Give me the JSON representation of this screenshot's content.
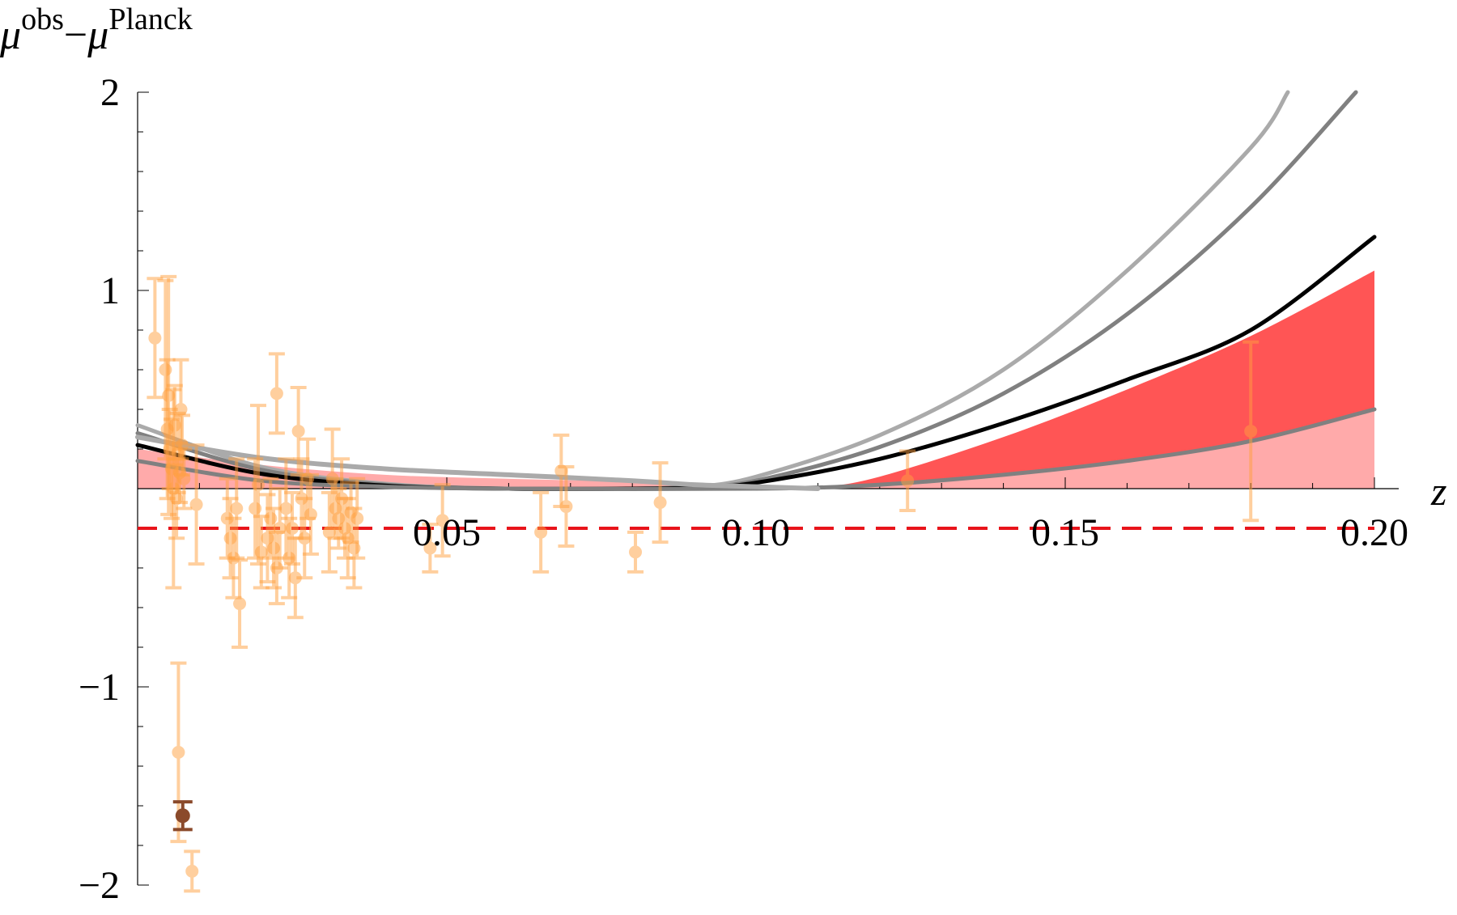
{
  "chart_data": {
    "type": "scatter",
    "title": "",
    "xlabel": "z",
    "ylabel": {
      "base1": "μ",
      "sup1": "obs",
      "minus": "−",
      "base2": "μ",
      "sup2": "Planck"
    },
    "xlim": [
      0,
      0.2
    ],
    "ylim": [
      -2,
      2
    ],
    "x_ticks": [
      {
        "value": 0.05,
        "label": "0.05"
      },
      {
        "value": 0.1,
        "label": "0.10"
      },
      {
        "value": 0.15,
        "label": "0.15"
      },
      {
        "value": 0.2,
        "label": "0.20"
      }
    ],
    "y_ticks": [
      {
        "value": 2,
        "label": "2"
      },
      {
        "value": 1,
        "label": "1"
      },
      {
        "value": -1,
        "label": "−1"
      },
      {
        "value": -2,
        "label": "−2"
      }
    ],
    "grid": false,
    "legend": "none",
    "colors": {
      "data_points": "#ffa040",
      "highlighted_point": "#8b4a2b",
      "band_dark": "#ff5555",
      "band_light": "#ffaaaa",
      "reference_line": "#e8141b",
      "curve_black": "#000000",
      "curve_dark_gray": "#808080",
      "curve_light_gray": "#aaaaaa"
    },
    "reference_line_y": -0.2,
    "curves": [
      {
        "color": "light-gray",
        "points": [
          [
            0,
            0.32
          ],
          [
            0.02,
            0.11
          ],
          [
            0.04,
            0.025
          ],
          [
            0.06,
            0
          ],
          [
            0.08,
            0
          ],
          [
            0.09,
            0.01
          ],
          [
            0.1,
            0.06
          ],
          [
            0.12,
            0.27
          ],
          [
            0.14,
            0.6
          ],
          [
            0.16,
            1.1
          ],
          [
            0.18,
            1.72
          ],
          [
            0.186,
            2.0
          ]
        ]
      },
      {
        "color": "dark-gray",
        "points": [
          [
            0,
            0.28
          ],
          [
            0.02,
            0.095
          ],
          [
            0.04,
            0.02
          ],
          [
            0.06,
            0
          ],
          [
            0.08,
            0
          ],
          [
            0.09,
            0.01
          ],
          [
            0.1,
            0.04
          ],
          [
            0.12,
            0.21
          ],
          [
            0.14,
            0.48
          ],
          [
            0.16,
            0.88
          ],
          [
            0.18,
            1.42
          ],
          [
            0.197,
            2.0
          ]
        ]
      },
      {
        "color": "black",
        "points": [
          [
            0,
            0.22
          ],
          [
            0.02,
            0.075
          ],
          [
            0.04,
            0.015
          ],
          [
            0.06,
            0
          ],
          [
            0.08,
            0
          ],
          [
            0.09,
            0.005
          ],
          [
            0.1,
            0.03
          ],
          [
            0.12,
            0.15
          ],
          [
            0.14,
            0.33
          ],
          [
            0.16,
            0.55
          ],
          [
            0.18,
            0.8
          ],
          [
            0.2,
            1.27
          ]
        ]
      },
      {
        "color": "band-lower-gray",
        "points": [
          [
            0,
            0.14
          ],
          [
            0.02,
            0.04
          ],
          [
            0.04,
            0.01
          ],
          [
            0.06,
            0
          ],
          [
            0.1,
            0
          ],
          [
            0.12,
            0.02
          ],
          [
            0.14,
            0.07
          ],
          [
            0.16,
            0.14
          ],
          [
            0.18,
            0.24
          ],
          [
            0.2,
            0.4
          ]
        ]
      },
      {
        "color": "upper-gray",
        "points": [
          [
            0,
            0.26
          ],
          [
            0.02,
            0.155
          ],
          [
            0.04,
            0.1
          ],
          [
            0.06,
            0.07
          ],
          [
            0.08,
            0.04
          ],
          [
            0.09,
            0.02
          ],
          [
            0.1,
            0.01
          ],
          [
            0.11,
            0
          ]
        ]
      }
    ],
    "band_dark": {
      "lower": [
        [
          0.11,
          0
        ],
        [
          0.12,
          0.02
        ],
        [
          0.14,
          0.07
        ],
        [
          0.16,
          0.14
        ],
        [
          0.18,
          0.24
        ],
        [
          0.2,
          0.4
        ]
      ],
      "upper": [
        [
          0.11,
          0
        ],
        [
          0.12,
          0.06
        ],
        [
          0.14,
          0.26
        ],
        [
          0.16,
          0.5
        ],
        [
          0.18,
          0.77
        ],
        [
          0.2,
          1.1
        ]
      ]
    },
    "band_light_upper": [
      [
        0,
        0.2
      ],
      [
        0.02,
        0.12
      ],
      [
        0.04,
        0.07
      ],
      [
        0.06,
        0.05
      ],
      [
        0.08,
        0.035
      ],
      [
        0.1,
        0.015
      ],
      [
        0.11,
        0.01
      ],
      [
        0.12,
        0.06
      ],
      [
        0.14,
        0.26
      ],
      [
        0.16,
        0.5
      ],
      [
        0.18,
        0.77
      ],
      [
        0.2,
        1.1
      ]
    ],
    "data_points": [
      {
        "x": 0.0028,
        "y": 0.76,
        "err": 0.3
      },
      {
        "x": 0.0045,
        "y": 0.6,
        "err": 0.45
      },
      {
        "x": 0.005,
        "y": 0.47,
        "err": 0.6
      },
      {
        "x": 0.0048,
        "y": 0.3,
        "err": 0.35
      },
      {
        "x": 0.0052,
        "y": 0.2,
        "err": 0.2
      },
      {
        "x": 0.0055,
        "y": 0.1,
        "err": 0.25
      },
      {
        "x": 0.006,
        "y": 0.32,
        "err": 0.2
      },
      {
        "x": 0.0058,
        "y": 0.0,
        "err": 0.5
      },
      {
        "x": 0.0065,
        "y": 0.18,
        "err": 0.2
      },
      {
        "x": 0.007,
        "y": 0.4,
        "err": 0.25
      },
      {
        "x": 0.0072,
        "y": 0.22,
        "err": 0.15
      },
      {
        "x": 0.0068,
        "y": 0.08,
        "err": 0.15
      },
      {
        "x": 0.0063,
        "y": -0.05,
        "err": 0.2
      },
      {
        "x": 0.0075,
        "y": 0.05,
        "err": 0.15
      },
      {
        "x": 0.0066,
        "y": -1.33,
        "err": 0.45
      },
      {
        "x": 0.0088,
        "y": -1.93,
        "err": 0.1
      },
      {
        "x": 0.0095,
        "y": -0.08,
        "err": 0.3
      },
      {
        "x": 0.0145,
        "y": -0.15,
        "err": 0.2
      },
      {
        "x": 0.015,
        "y": -0.25,
        "err": 0.2
      },
      {
        "x": 0.0155,
        "y": -0.35,
        "err": 0.2
      },
      {
        "x": 0.016,
        "y": -0.1,
        "err": 0.25
      },
      {
        "x": 0.0165,
        "y": -0.58,
        "err": 0.22
      },
      {
        "x": 0.019,
        "y": -0.1,
        "err": 0.25
      },
      {
        "x": 0.0195,
        "y": 0.02,
        "err": 0.4
      },
      {
        "x": 0.02,
        "y": -0.32,
        "err": 0.18
      },
      {
        "x": 0.021,
        "y": -0.25,
        "err": 0.22
      },
      {
        "x": 0.022,
        "y": -0.3,
        "err": 0.2
      },
      {
        "x": 0.0215,
        "y": -0.15,
        "err": 0.2
      },
      {
        "x": 0.0225,
        "y": -0.4,
        "err": 0.18
      },
      {
        "x": 0.023,
        "y": -0.2,
        "err": 0.2
      },
      {
        "x": 0.0225,
        "y": 0.48,
        "err": 0.2
      },
      {
        "x": 0.024,
        "y": -0.1,
        "err": 0.25
      },
      {
        "x": 0.0245,
        "y": -0.35,
        "err": 0.2
      },
      {
        "x": 0.025,
        "y": -0.2,
        "err": 0.18
      },
      {
        "x": 0.0255,
        "y": -0.45,
        "err": 0.2
      },
      {
        "x": 0.026,
        "y": 0.29,
        "err": 0.22
      },
      {
        "x": 0.0265,
        "y": -0.05,
        "err": 0.2
      },
      {
        "x": 0.027,
        "y": -0.25,
        "err": 0.2
      },
      {
        "x": 0.0275,
        "y": 0.05,
        "err": 0.2
      },
      {
        "x": 0.028,
        "y": -0.13,
        "err": 0.2
      },
      {
        "x": 0.031,
        "y": -0.22,
        "err": 0.2
      },
      {
        "x": 0.0315,
        "y": 0.05,
        "err": 0.25
      },
      {
        "x": 0.032,
        "y": -0.1,
        "err": 0.15
      },
      {
        "x": 0.0325,
        "y": -0.15,
        "err": 0.15
      },
      {
        "x": 0.033,
        "y": -0.05,
        "err": 0.2
      },
      {
        "x": 0.0335,
        "y": -0.2,
        "err": 0.15
      },
      {
        "x": 0.034,
        "y": -0.25,
        "err": 0.2
      },
      {
        "x": 0.0345,
        "y": -0.12,
        "err": 0.15
      },
      {
        "x": 0.035,
        "y": -0.3,
        "err": 0.2
      },
      {
        "x": 0.0355,
        "y": -0.15,
        "err": 0.2
      },
      {
        "x": 0.0473,
        "y": -0.3,
        "err": 0.12
      },
      {
        "x": 0.0493,
        "y": -0.16,
        "err": 0.18
      },
      {
        "x": 0.0652,
        "y": -0.22,
        "err": 0.2
      },
      {
        "x": 0.0685,
        "y": 0.09,
        "err": 0.18
      },
      {
        "x": 0.0693,
        "y": -0.09,
        "err": 0.2
      },
      {
        "x": 0.0805,
        "y": -0.32,
        "err": 0.1
      },
      {
        "x": 0.0845,
        "y": -0.07,
        "err": 0.2
      },
      {
        "x": 0.1245,
        "y": 0.04,
        "err": 0.15
      },
      {
        "x": 0.18,
        "y": 0.29,
        "err": 0.45
      }
    ],
    "highlighted_point": {
      "x": 0.0073,
      "y": -1.65,
      "err": 0.07
    }
  }
}
